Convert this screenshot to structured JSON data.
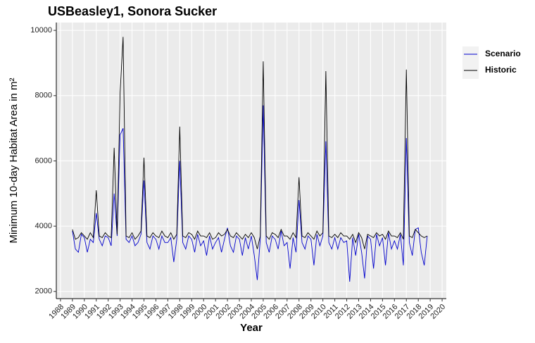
{
  "chart_data": {
    "type": "line",
    "title": "USBeasley1, Sonora Sucker",
    "x_label": "Year",
    "y_label": "Minimum 10-day Habitat Area in m²",
    "x": [
      1989,
      1989.25,
      1989.5,
      1989.75,
      1990,
      1990.25,
      1990.5,
      1990.75,
      1991,
      1991.25,
      1991.5,
      1991.75,
      1992,
      1992.25,
      1992.5,
      1992.75,
      1993,
      1993.25,
      1993.5,
      1993.75,
      1994,
      1994.25,
      1994.5,
      1994.75,
      1995,
      1995.25,
      1995.5,
      1995.75,
      1996,
      1996.25,
      1996.5,
      1996.75,
      1997,
      1997.25,
      1997.5,
      1997.75,
      1998,
      1998.25,
      1998.5,
      1998.75,
      1999,
      1999.25,
      1999.5,
      1999.75,
      2000,
      2000.25,
      2000.5,
      2000.75,
      2001,
      2001.25,
      2001.5,
      2001.75,
      2002,
      2002.25,
      2002.5,
      2002.75,
      2003,
      2003.25,
      2003.5,
      2003.75,
      2004,
      2004.25,
      2004.5,
      2004.75,
      2005,
      2005.25,
      2005.5,
      2005.75,
      2006,
      2006.25,
      2006.5,
      2006.75,
      2007,
      2007.25,
      2007.5,
      2007.75,
      2008,
      2008.25,
      2008.5,
      2008.75,
      2009,
      2009.25,
      2009.5,
      2009.75,
      2010,
      2010.25,
      2010.5,
      2010.75,
      2011,
      2011.25,
      2011.5,
      2011.75,
      2012,
      2012.25,
      2012.5,
      2012.75,
      2013,
      2013.25,
      2013.5,
      2013.75,
      2014,
      2014.25,
      2014.5,
      2014.75,
      2015,
      2015.25,
      2015.5,
      2015.75,
      2016,
      2016.25,
      2016.5,
      2016.75,
      2017,
      2017.25,
      2017.5,
      2017.75,
      2018,
      2018.25,
      2018.5,
      2018.75
    ],
    "series": [
      {
        "name": "Scenario",
        "color": "#0000cd",
        "values": [
          3850,
          3300,
          3200,
          3750,
          3650,
          3200,
          3600,
          3500,
          4400,
          3600,
          3400,
          3700,
          3650,
          3400,
          5000,
          3700,
          6800,
          7000,
          3600,
          3500,
          3700,
          3400,
          3500,
          3750,
          5400,
          3500,
          3300,
          3700,
          3600,
          3300,
          3700,
          3500,
          3500,
          3650,
          2900,
          3600,
          6000,
          3500,
          3300,
          3700,
          3600,
          3200,
          3750,
          3400,
          3550,
          3100,
          3700,
          3300,
          3500,
          3650,
          3200,
          3600,
          3950,
          3400,
          3200,
          3700,
          3600,
          3100,
          3650,
          3300,
          3700,
          3100,
          2350,
          3600,
          7700,
          3500,
          3200,
          3700,
          3600,
          3300,
          3850,
          3400,
          3500,
          2700,
          3650,
          3200,
          4800,
          3500,
          3300,
          3700,
          3600,
          2800,
          3750,
          3400,
          3700,
          6600,
          3500,
          3300,
          3650,
          3300,
          3650,
          3500,
          3550,
          2300,
          3650,
          3100,
          3750,
          3200,
          2400,
          3700,
          3600,
          2700,
          3750,
          3400,
          3650,
          2800,
          3800,
          3300,
          3550,
          3300,
          3750,
          2800,
          6700,
          3500,
          3100,
          3900,
          3950,
          3200,
          2800,
          3700
        ]
      },
      {
        "name": "Historic",
        "color": "#000000",
        "values": [
          3900,
          3600,
          3650,
          3800,
          3700,
          3600,
          3800,
          3650,
          5100,
          3700,
          3650,
          3800,
          3700,
          3650,
          6400,
          3750,
          8100,
          9800,
          3700,
          3650,
          3800,
          3600,
          3700,
          3850,
          6100,
          3700,
          3650,
          3800,
          3700,
          3650,
          3850,
          3700,
          3650,
          3800,
          3600,
          3750,
          7050,
          3700,
          3650,
          3800,
          3750,
          3600,
          3850,
          3700,
          3700,
          3650,
          3800,
          3600,
          3650,
          3800,
          3700,
          3750,
          3900,
          3700,
          3650,
          3800,
          3700,
          3600,
          3750,
          3650,
          3800,
          3650,
          3300,
          3700,
          9050,
          3700,
          3600,
          3800,
          3750,
          3650,
          3900,
          3700,
          3700,
          3600,
          3800,
          3650,
          5500,
          3700,
          3650,
          3800,
          3700,
          3600,
          3850,
          3700,
          3800,
          8750,
          3700,
          3650,
          3750,
          3650,
          3800,
          3700,
          3700,
          3600,
          3750,
          3500,
          3800,
          3650,
          3300,
          3750,
          3700,
          3650,
          3800,
          3700,
          3750,
          3600,
          3850,
          3700,
          3700,
          3650,
          3800,
          3600,
          8800,
          3700,
          3650,
          3900,
          3800,
          3700,
          3650,
          3700
        ]
      }
    ],
    "xlim": [
      1987.65,
      2020.35
    ],
    "xticks": [
      1988,
      1989,
      1990,
      1991,
      1992,
      1993,
      1994,
      1995,
      1996,
      1997,
      1998,
      1999,
      2000,
      2001,
      2002,
      2003,
      2004,
      2005,
      2006,
      2007,
      2008,
      2009,
      2010,
      2011,
      2012,
      2013,
      2014,
      2015,
      2016,
      2017,
      2018,
      2019,
      2020
    ],
    "ylim": [
      1780,
      10240
    ],
    "yticks": [
      2000,
      4000,
      6000,
      8000,
      10000
    ],
    "grid": true
  }
}
